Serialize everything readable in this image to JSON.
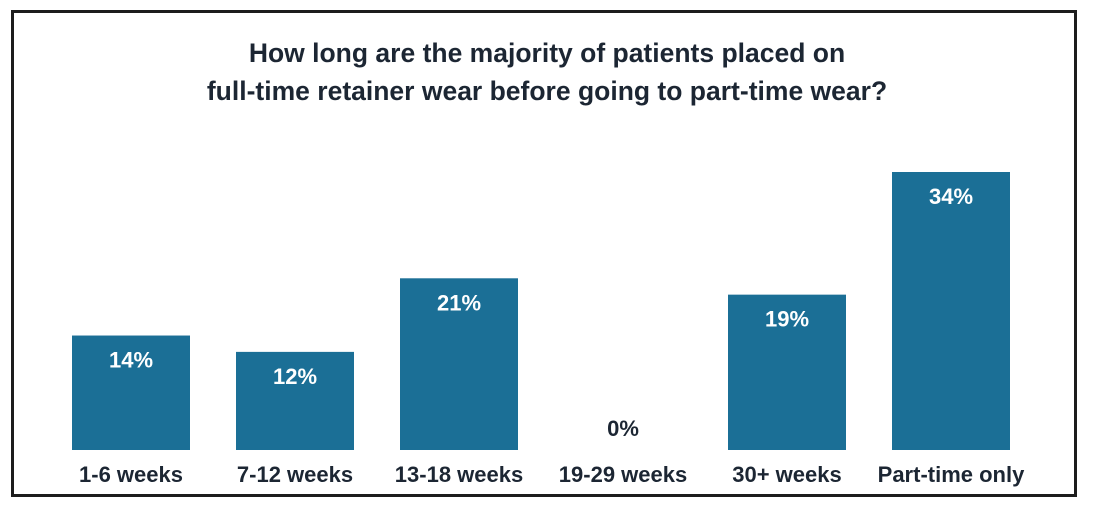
{
  "chart_data": {
    "type": "bar",
    "title_lines": [
      "How long are the majority of patients placed on",
      "full-time retainer wear before going to part-time wear?"
    ],
    "categories": [
      "1-6 weeks",
      "7-12 weeks",
      "13-18 weeks",
      "19-29 weeks",
      "30+ weeks",
      "Part-time only"
    ],
    "values": [
      14,
      12,
      21,
      0,
      19,
      34
    ],
    "value_labels": [
      "14%",
      "12%",
      "21%",
      "0%",
      "19%",
      "34%"
    ],
    "ylim": [
      0,
      34
    ],
    "grid": false,
    "legend": "none",
    "colors": {
      "bar": "#1b6f96",
      "label_on_bar": "#ffffff",
      "label_off_bar": "#1c2633"
    }
  }
}
